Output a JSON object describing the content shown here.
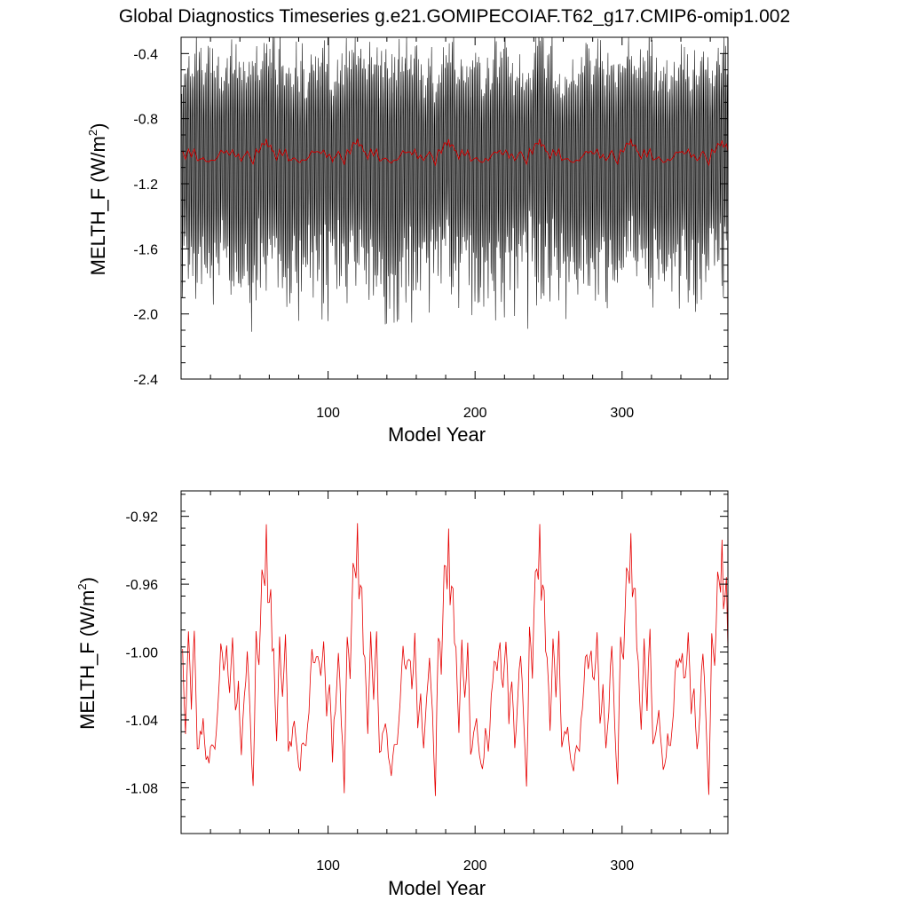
{
  "figure": {
    "title": "Global Diagnostics Timeseries g.e21.GOMIPECOIAF.T62_g17.CMIP6-omip1.002"
  },
  "chart_data": [
    {
      "type": "line",
      "xlabel": "Model Year",
      "ylabel": "MELTH_F (W/m",
      "ylabel_sup": "2",
      "ylabel_close": ")",
      "xlim": [
        0,
        372
      ],
      "ylim": [
        -2.4,
        -0.3
      ],
      "xticks": [
        100,
        200,
        300
      ],
      "xtick_labels": [
        "100",
        "200",
        "300"
      ],
      "yticks": [
        -2.4,
        -2.0,
        -1.6,
        -1.2,
        -0.8,
        -0.4
      ],
      "ytick_labels": [
        "-2.4",
        "-2.0",
        "-1.6",
        "-1.2",
        "-0.8",
        "-0.4"
      ],
      "series": [
        {
          "color": "#000000",
          "sampling": "monthly",
          "description_values": "monthly envelope",
          "monthly_min_range": [
            -2.2,
            -1.6
          ],
          "monthly_max_range": [
            -0.65,
            -0.42
          ]
        },
        {
          "color": "#cc0000",
          "sampling": "annual",
          "values_ref": "annual_mean"
        }
      ]
    },
    {
      "type": "line",
      "xlabel": "Model Year",
      "ylabel": "MELTH_F (W/m",
      "ylabel_sup": "2",
      "ylabel_close": ")",
      "xlim": [
        0,
        372
      ],
      "ylim": [
        -1.107,
        -0.905
      ],
      "xticks": [
        100,
        200,
        300
      ],
      "xtick_labels": [
        "100",
        "200",
        "300"
      ],
      "yticks": [
        -1.08,
        -1.04,
        -1.0,
        -0.96,
        -0.92
      ],
      "ytick_labels": [
        "-1.08",
        "-1.04",
        "-1.00",
        "-0.96",
        "-0.92"
      ],
      "series": [
        {
          "color": "#e60000",
          "values_ref": "annual_mean"
        }
      ]
    }
  ],
  "annual_mean": {
    "x_start": 1,
    "x_step": 1,
    "cycle_length": 62,
    "anchors": [
      [
        0,
        -1.0
      ],
      [
        2,
        -1.05
      ],
      [
        4,
        -0.99
      ],
      [
        6,
        -1.03
      ],
      [
        8,
        -0.99
      ],
      [
        10,
        -1.06
      ],
      [
        12,
        -1.05
      ],
      [
        14,
        -1.04
      ],
      [
        16,
        -1.06
      ],
      [
        18,
        -1.07
      ],
      [
        20,
        -1.05
      ],
      [
        22,
        -1.06
      ],
      [
        24,
        -1.03
      ],
      [
        26,
        -1.0
      ],
      [
        28,
        -1.01
      ],
      [
        30,
        -1.0
      ],
      [
        32,
        -1.02
      ],
      [
        34,
        -0.99
      ],
      [
        36,
        -1.04
      ],
      [
        38,
        -1.02
      ],
      [
        40,
        -1.06
      ],
      [
        42,
        -1.03
      ],
      [
        44,
        -1.0
      ],
      [
        46,
        -1.04
      ],
      [
        48,
        -1.08
      ],
      [
        50,
        -0.99
      ],
      [
        52,
        -1.01
      ],
      [
        54,
        -0.95
      ],
      [
        56,
        -0.96
      ],
      [
        57,
        -0.93
      ],
      [
        58,
        -0.97
      ],
      [
        60,
        -0.96
      ],
      [
        62,
        -1.03
      ]
    ]
  }
}
